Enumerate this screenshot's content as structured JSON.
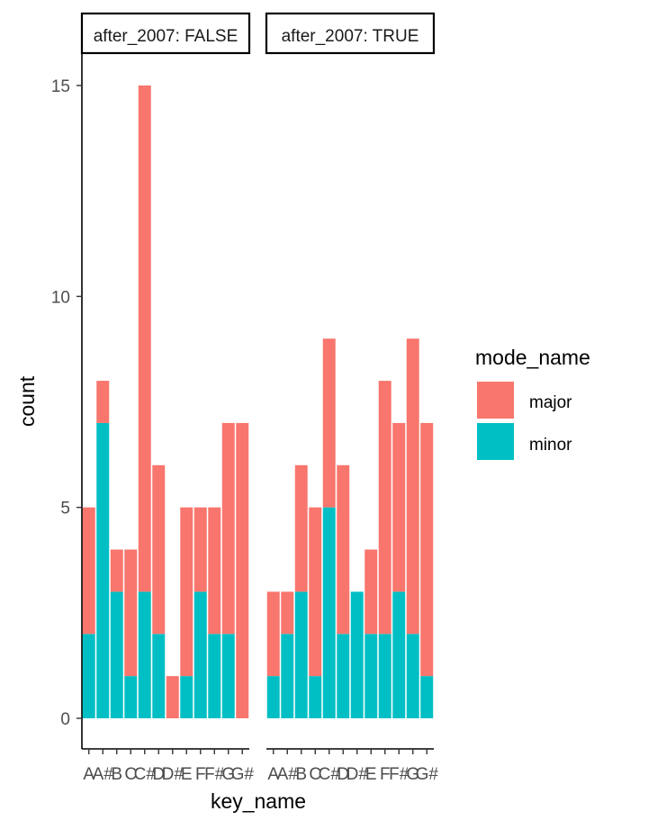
{
  "chart_data": {
    "type": "bar",
    "stacked": true,
    "xlabel": "key_name",
    "ylabel": "count",
    "ylim": [
      0,
      15
    ],
    "yticks": [
      0,
      5,
      10,
      15
    ],
    "categories": [
      "A",
      "A#",
      "B",
      "C",
      "C#",
      "D",
      "D#",
      "E",
      "F",
      "F#",
      "G",
      "G#"
    ],
    "legend": {
      "title": "mode_name",
      "position": "right",
      "entries": [
        {
          "name": "major",
          "color": "#F8766D"
        },
        {
          "name": "minor",
          "color": "#00BFC4"
        }
      ]
    },
    "panels": [
      {
        "strip": "after_2007: FALSE",
        "series": [
          {
            "name": "minor",
            "values": [
              2,
              7,
              3,
              1,
              3,
              2,
              0,
              1,
              3,
              2,
              2,
              0
            ]
          },
          {
            "name": "major",
            "values": [
              3,
              1,
              1,
              3,
              12,
              4,
              1,
              4,
              2,
              3,
              5,
              7
            ]
          }
        ]
      },
      {
        "strip": "after_2007: TRUE",
        "series": [
          {
            "name": "minor",
            "values": [
              1,
              2,
              3,
              1,
              5,
              2,
              3,
              2,
              2,
              3,
              2,
              1
            ]
          },
          {
            "name": "major",
            "values": [
              2,
              1,
              3,
              4,
              4,
              4,
              0,
              2,
              6,
              4,
              7,
              6
            ]
          }
        ]
      }
    ]
  }
}
